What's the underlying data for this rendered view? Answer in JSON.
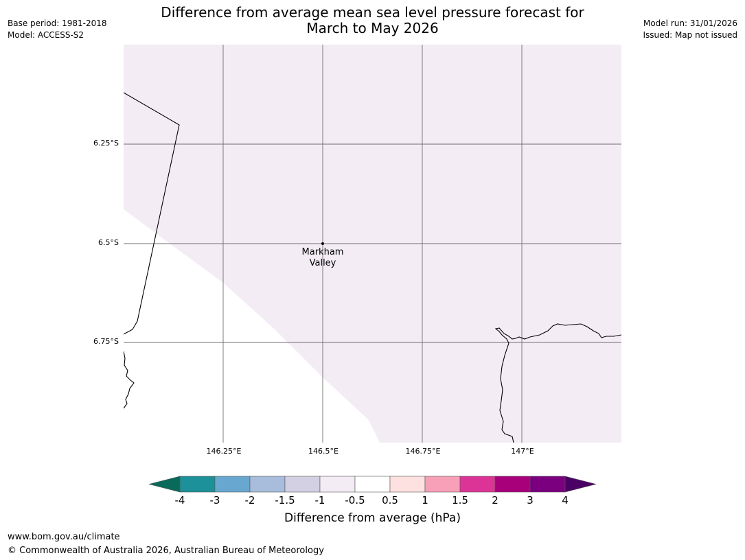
{
  "header": {
    "base_period": "Base period: 1981-2018",
    "model": "Model: ACCESS-S2",
    "model_run": "Model run: 31/01/2026",
    "issued": "Issued: Map not issued",
    "title_line1": "Difference from average mean sea level pressure forecast for",
    "title_line2": "March to May 2026"
  },
  "map": {
    "lat_labels": [
      "6.25°S",
      "6.5°S",
      "6.75°S"
    ],
    "lon_labels": [
      "146.25°E",
      "146.5°E",
      "146.75°E",
      "147°E"
    ],
    "place": {
      "name_line1": "Markham",
      "name_line2": "Valley"
    },
    "fill_color": "#f3ecf5"
  },
  "colorbar": {
    "title": "Difference from average (hPa)",
    "ticks": [
      "-4",
      "-3",
      "-2",
      "-1.5",
      "-1",
      "-0.5",
      "0.5",
      "1",
      "1.5",
      "2",
      "3",
      "4"
    ],
    "low_extend_color": "#0a6a5a",
    "high_extend_color": "#4b0066",
    "segment_colors": [
      "#1c9199",
      "#68a8d0",
      "#a8bcdc",
      "#d4d0e4",
      "#f3ecf5",
      "#ffffff",
      "#fde0e0",
      "#f7a0b8",
      "#dc3496",
      "#a8007a",
      "#7a0080"
    ]
  },
  "footer": {
    "url": "www.bom.gov.au/climate",
    "copyright": "© Commonwealth of Australia 2026, Australian Bureau of Meteorology"
  }
}
